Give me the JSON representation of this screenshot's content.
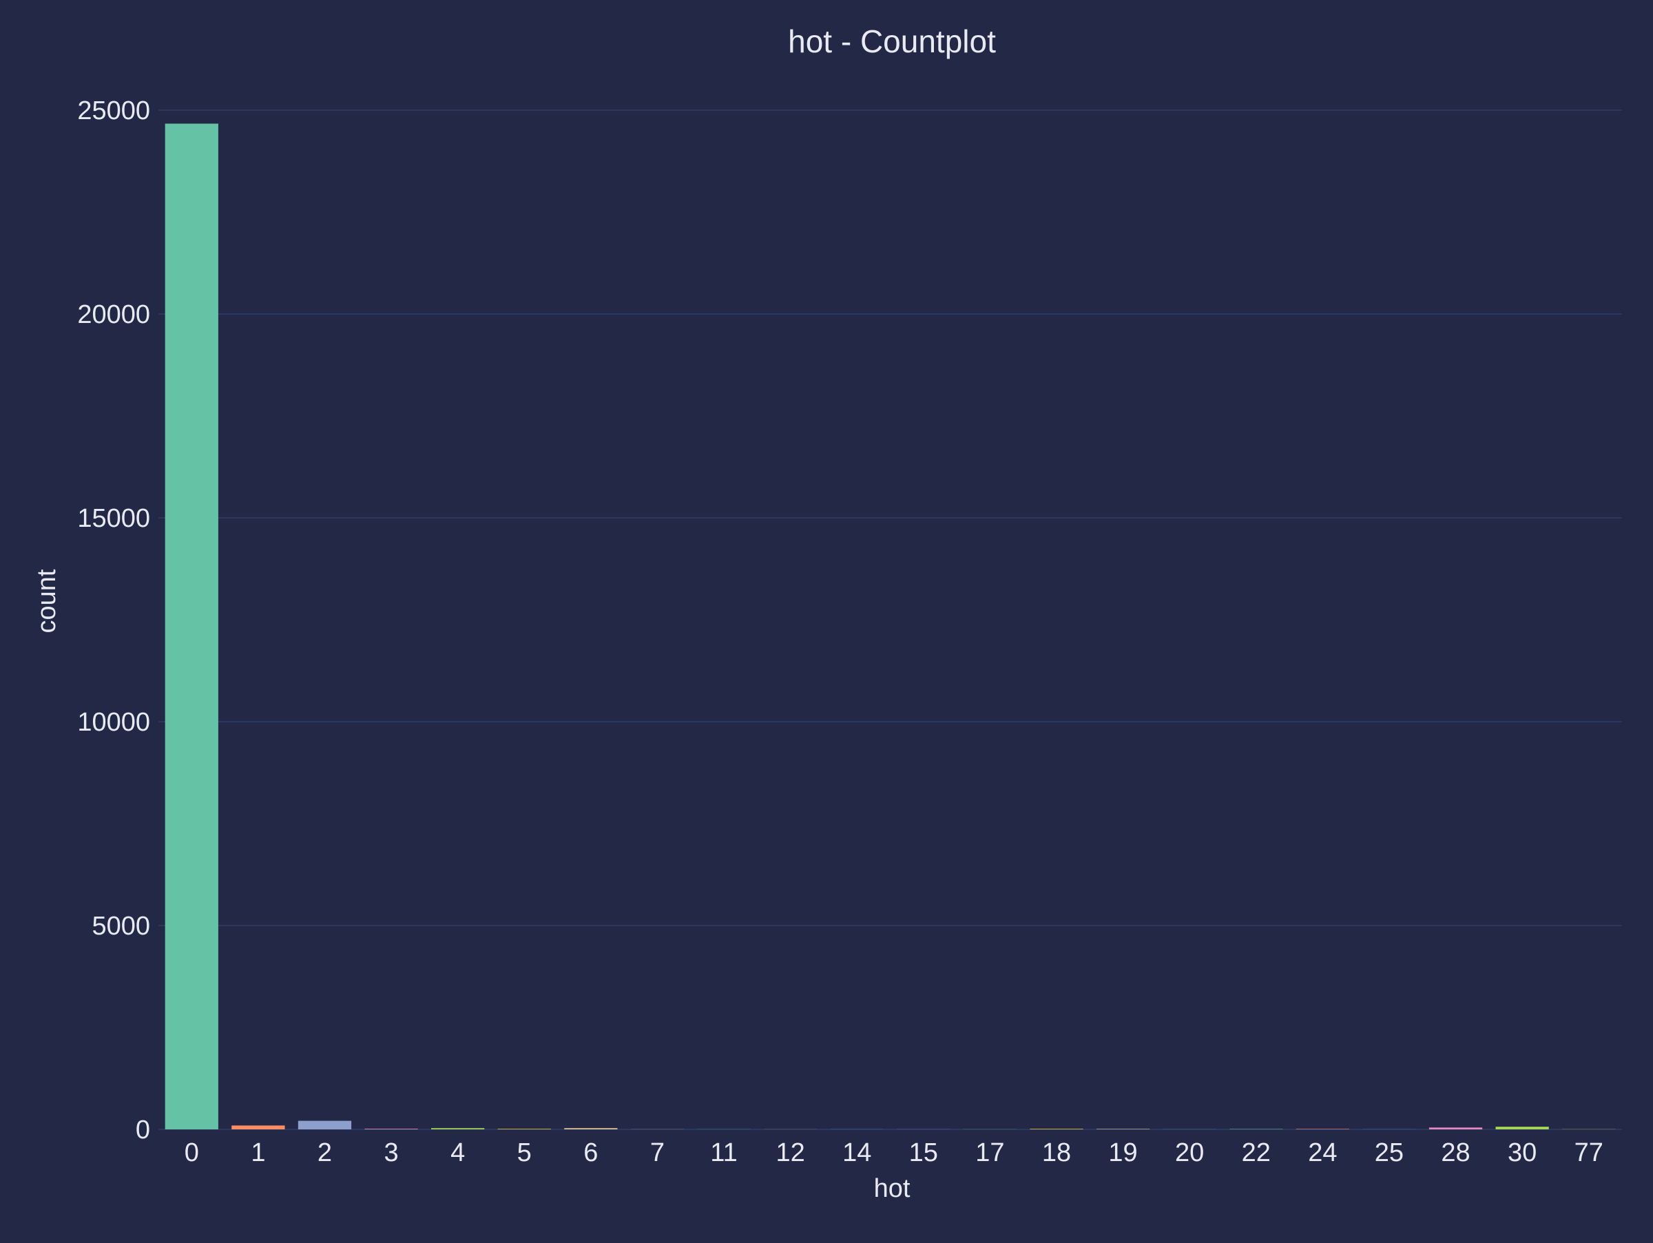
{
  "chart_data": {
    "type": "bar",
    "title": "hot - Countplot",
    "xlabel": "hot",
    "ylabel": "count",
    "ylim": [
      0,
      25000
    ],
    "yticks": [
      "0",
      "5000",
      "10000",
      "15000",
      "20000",
      "25000"
    ],
    "grid": true,
    "categories": [
      "0",
      "1",
      "2",
      "3",
      "4",
      "5",
      "6",
      "7",
      "11",
      "12",
      "14",
      "15",
      "17",
      "18",
      "19",
      "20",
      "22",
      "24",
      "25",
      "28",
      "30",
      "77"
    ],
    "values": [
      24670,
      95,
      210,
      15,
      30,
      12,
      30,
      3,
      2,
      2,
      2,
      2,
      2,
      12,
      10,
      2,
      8,
      10,
      2,
      45,
      65,
      3
    ],
    "colors": [
      "#66c2a5",
      "#fc8d62",
      "#8da0cb",
      "#e78ac3",
      "#a6d854",
      "#ffd92f",
      "#e5c494",
      "#b3b3b3",
      "#66c2a5",
      "#fc8d62",
      "#8da0cb",
      "#e78ac3",
      "#a6d854",
      "#ffd92f",
      "#e5c494",
      "#b3b3b3",
      "#66c2a5",
      "#fc8d62",
      "#8da0cb",
      "#e78ac3",
      "#a6d854",
      "#ffd92f"
    ]
  },
  "theme": {
    "background": "#222846",
    "grid_color": "#2d375d",
    "text_color": "#eaeaf2"
  }
}
